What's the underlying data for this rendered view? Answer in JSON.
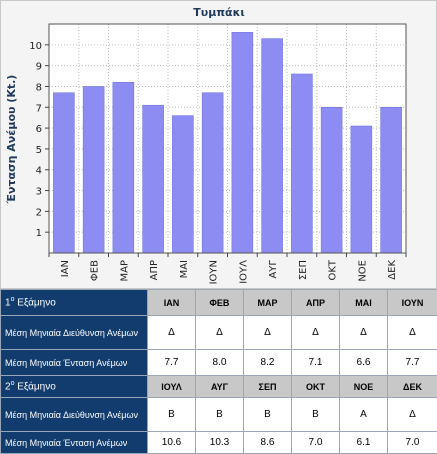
{
  "chart_data": {
    "type": "bar",
    "title": "Τυμπάκι",
    "ylabel": "Ένταση Ανέμου (Kt.)",
    "xlabel": "",
    "categories": [
      "ΙΑΝ",
      "ΦΕΒ",
      "ΜΑΡ",
      "ΑΠΡ",
      "ΜΑΙ",
      "ΙΟΥΝ",
      "ΙΟΥΛ",
      "ΑΥΓ",
      "ΣΕΠ",
      "ΟΚΤ",
      "ΝΟΕ",
      "ΔΕΚ"
    ],
    "values": [
      7.7,
      8.0,
      8.2,
      7.1,
      6.6,
      7.7,
      10.6,
      10.3,
      8.6,
      7.0,
      6.1,
      7.0
    ],
    "ylim": [
      0,
      11
    ],
    "yticks": [
      1,
      2,
      3,
      4,
      5,
      6,
      7,
      8,
      9,
      10
    ],
    "grid": true,
    "bar_color": "#8c8cf2"
  },
  "table": {
    "sections": [
      {
        "header_num": "1",
        "header_sup": "ο",
        "header_text": " Εξάμηνο",
        "months": [
          "ΙΑΝ",
          "ΦΕΒ",
          "ΜΑΡ",
          "ΑΠΡ",
          "ΜΑΙ",
          "ΙΟΥΝ"
        ],
        "direction_label": "Μέση Μηνιαία Διεύθυνση Ανέμων",
        "directions": [
          "Δ",
          "Δ",
          "Δ",
          "Δ",
          "Δ",
          "Δ"
        ],
        "intensity_label": "Μέση Μηνιαία Ένταση Ανέμων",
        "intensities": [
          "7.7",
          "8.0",
          "8.2",
          "7.1",
          "6.6",
          "7.7"
        ]
      },
      {
        "header_num": "2",
        "header_sup": "ο",
        "header_text": " Εξάμηνο",
        "months": [
          "ΙΟΥΛ",
          "ΑΥΓ",
          "ΣΕΠ",
          "ΟΚΤ",
          "ΝΟΕ",
          "ΔΕΚ"
        ],
        "direction_label": "Μέση Μηνιαία Διεύθυνση Ανέμων",
        "directions": [
          "Β",
          "Β",
          "Β",
          "Β",
          "Α",
          "Δ"
        ],
        "intensity_label": "Μέση Μηνιαία Ένταση Ανέμων",
        "intensities": [
          "10.6",
          "10.3",
          "8.6",
          "7.0",
          "6.1",
          "7.0"
        ]
      }
    ]
  }
}
